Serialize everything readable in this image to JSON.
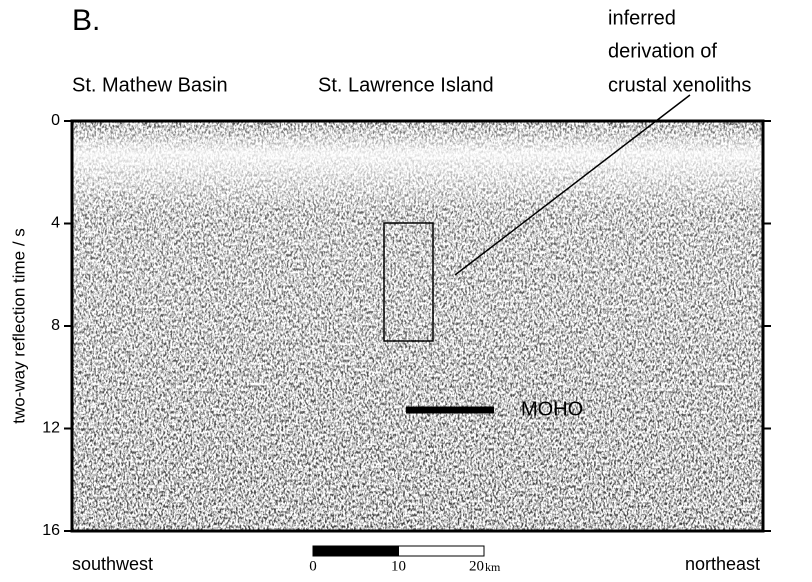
{
  "chart_data": {
    "type": "seismic",
    "panel_label": "B.",
    "top_labels": [
      "St. Mathew Basin",
      "St. Lawrence Island"
    ],
    "annotation": [
      "inferred",
      "derivation of",
      "crustal xenoliths"
    ],
    "moho_label": "MOHO",
    "ylabel": "two-way reflection time / s",
    "ylim": [
      0,
      16
    ],
    "yticks": [
      0,
      4,
      8,
      12,
      16
    ],
    "left_label": "southwest",
    "right_label": "northeast",
    "scale_bar": {
      "lim": [
        0,
        20
      ],
      "ticks": [
        0,
        10,
        20
      ],
      "unit": "km"
    }
  }
}
